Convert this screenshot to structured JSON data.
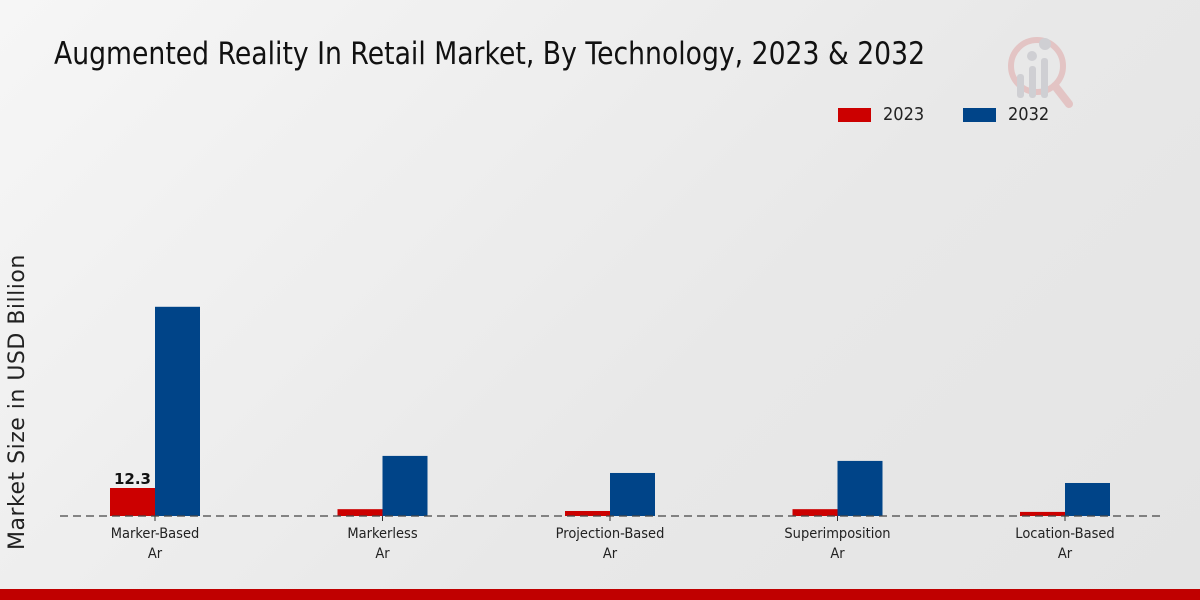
{
  "chart_data": {
    "type": "bar",
    "title": "Augmented Reality In Retail Market, By Technology, 2023 & 2032",
    "xlabel": "",
    "ylabel": "Market Size in USD Billion",
    "categories": [
      "Marker-Based Ar",
      "Markerless Ar",
      "Projection-Based Ar",
      "Superimposition Ar",
      "Location-Based Ar"
    ],
    "category_lines": [
      [
        "Marker-Based",
        "Ar"
      ],
      [
        "Markerless",
        "Ar"
      ],
      [
        "Projection-Based",
        "Ar"
      ],
      [
        "Superimposition",
        "Ar"
      ],
      [
        "Location-Based",
        "Ar"
      ]
    ],
    "series": [
      {
        "name": "2023",
        "color": "#cc0000",
        "values": [
          12.3,
          3.0,
          2.2,
          3.0,
          1.8
        ]
      },
      {
        "name": "2032",
        "color": "#004488",
        "values": [
          91.9,
          26.4,
          18.9,
          24.2,
          14.5
        ]
      }
    ],
    "data_labels": [
      {
        "series": "2023",
        "category": "Marker-Based Ar",
        "text": "12.3"
      }
    ],
    "ylim": [
      0,
      100
    ],
    "grid": false,
    "legend_position": "top-right"
  },
  "legend": {
    "items": [
      {
        "label": "2023",
        "color": "#cc0000"
      },
      {
        "label": "2032",
        "color": "#004488"
      }
    ]
  },
  "colors": {
    "footer_bar": "#c00000"
  }
}
